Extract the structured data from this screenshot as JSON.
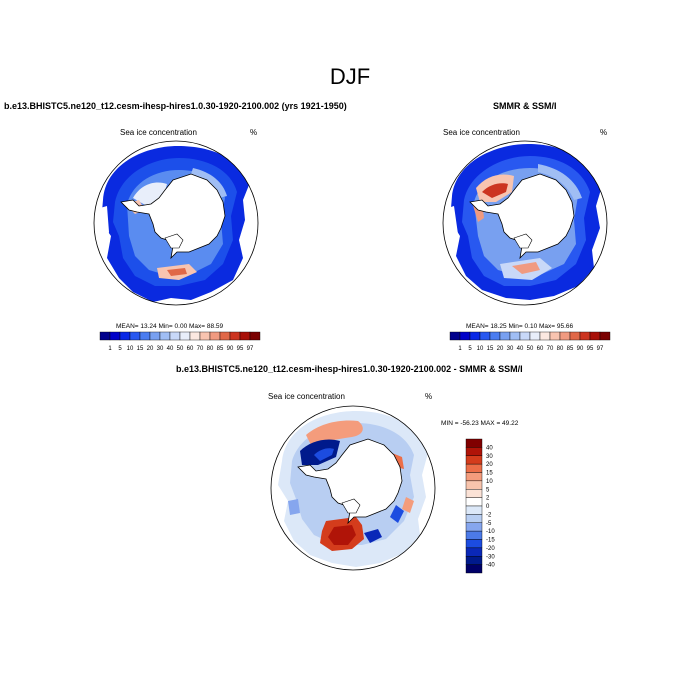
{
  "page": {
    "title": "DJF"
  },
  "panels": {
    "model": {
      "title": "b.e13.BHISTC5.ne120_t12.cesm-ihesp-hires1.0.30-1920-2100.002 (yrs 1921-1950)",
      "left_label": "Sea ice concentration",
      "right_label": "%",
      "stats": "MEAN=  13.24  Min=   0.00  Max=  88.59"
    },
    "obs": {
      "title": "SMMR & SSM/I",
      "left_label": "Sea ice concentration",
      "right_label": "%",
      "stats": "MEAN=  18.25  Min=   0.10  Max=  95.66"
    },
    "diff": {
      "title": "b.e13.BHISTC5.ne120_t12.cesm-ihesp-hires1.0.30-1920-2100.002 - SMMR & SSM/I",
      "left_label": "Sea ice concentration",
      "right_label": "%",
      "stats": "MIN = -56.23 MAX =  49.22"
    }
  },
  "colorbars": {
    "concentration": {
      "labels": [
        "1",
        "5",
        "10",
        "15",
        "20",
        "30",
        "40",
        "50",
        "60",
        "70",
        "80",
        "85",
        "90",
        "95",
        "97"
      ],
      "colors": [
        "#00008c",
        "#0000c8",
        "#0a28e6",
        "#2858f0",
        "#4a7cf0",
        "#78a0f0",
        "#a0bef4",
        "#c8d8f8",
        "#e8eefa",
        "#fbe8e0",
        "#f8c4b0",
        "#f09a80",
        "#e06848",
        "#cc3420",
        "#a81008",
        "#7a0000"
      ]
    },
    "difference": {
      "labels": [
        "40",
        "30",
        "20",
        "15",
        "10",
        "5",
        "2",
        "0",
        "-2",
        "-5",
        "-10",
        "-15",
        "-20",
        "-30",
        "-40"
      ],
      "colors": [
        "#800000",
        "#b01408",
        "#d43c1c",
        "#ec6e48",
        "#f49c7c",
        "#f8c4ac",
        "#fbe2d6",
        "#ffffff",
        "#dce8f8",
        "#b8cef2",
        "#86a6ee",
        "#4c7ae8",
        "#1c4ce0",
        "#0a28b8",
        "#001a8c",
        "#000068"
      ]
    }
  },
  "map_colors": {
    "ocean": "#ffffff",
    "land": "#ffffff",
    "coast": "#000000"
  }
}
